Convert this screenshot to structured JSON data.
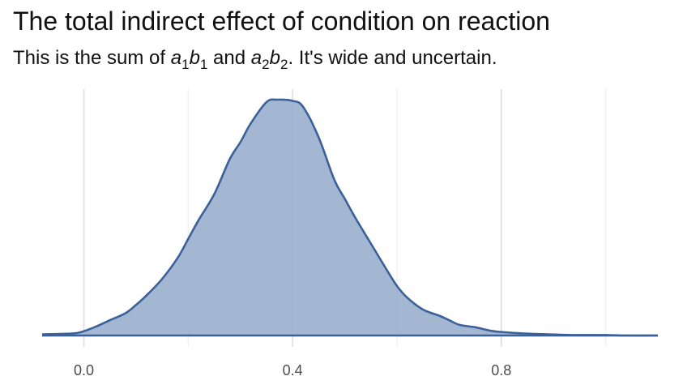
{
  "title": "The total indirect effect of condition on reaction",
  "subtitle": {
    "prefix": "This is the sum of ",
    "a1": "a",
    "a1_sub": "1",
    "b1": "b",
    "b1_sub": "1",
    "conj": " and ",
    "a2": "a",
    "a2_sub": "2",
    "b2": "b",
    "b2_sub": "2",
    "suffix": ". It's wide and uncertain."
  },
  "colors": {
    "fill": "#9BB0CE",
    "line": "#3A6299",
    "grid_major": "#e3e3e3",
    "grid_minor": "#f1f1f1"
  },
  "chart_data": {
    "type": "area",
    "title": "The total indirect effect of condition on reaction",
    "subtitle": "This is the sum of a1b1 and a2b2. It's wide and uncertain.",
    "xlabel": "",
    "ylabel": "",
    "xlim": [
      -0.08,
      1.1
    ],
    "ylim": [
      0,
      1.0
    ],
    "x_ticks": [
      0.0,
      0.4,
      0.8
    ],
    "x_tick_labels": [
      "0.0",
      "0.4",
      "0.8"
    ],
    "y_axis_visible": false,
    "grid": true,
    "series": [
      {
        "x": [
          -0.08,
          -0.04,
          -0.01,
          0.02,
          0.05,
          0.08,
          0.1,
          0.12,
          0.15,
          0.18,
          0.2,
          0.22,
          0.25,
          0.28,
          0.3,
          0.32,
          0.35,
          0.37,
          0.4,
          0.42,
          0.45,
          0.48,
          0.5,
          0.52,
          0.55,
          0.58,
          0.6,
          0.62,
          0.65,
          0.68,
          0.7,
          0.72,
          0.75,
          0.78,
          0.8,
          0.84,
          0.88,
          0.92,
          0.96,
          1.0,
          1.04,
          1.1
        ],
        "y": [
          0.005,
          0.007,
          0.012,
          0.035,
          0.065,
          0.095,
          0.13,
          0.17,
          0.24,
          0.33,
          0.41,
          0.49,
          0.6,
          0.75,
          0.82,
          0.9,
          0.99,
          1.0,
          0.995,
          0.97,
          0.84,
          0.66,
          0.58,
          0.5,
          0.39,
          0.28,
          0.21,
          0.16,
          0.11,
          0.085,
          0.065,
          0.045,
          0.035,
          0.02,
          0.015,
          0.009,
          0.006,
          0.003,
          0.002,
          0.002,
          0.0,
          0.0
        ]
      }
    ]
  }
}
